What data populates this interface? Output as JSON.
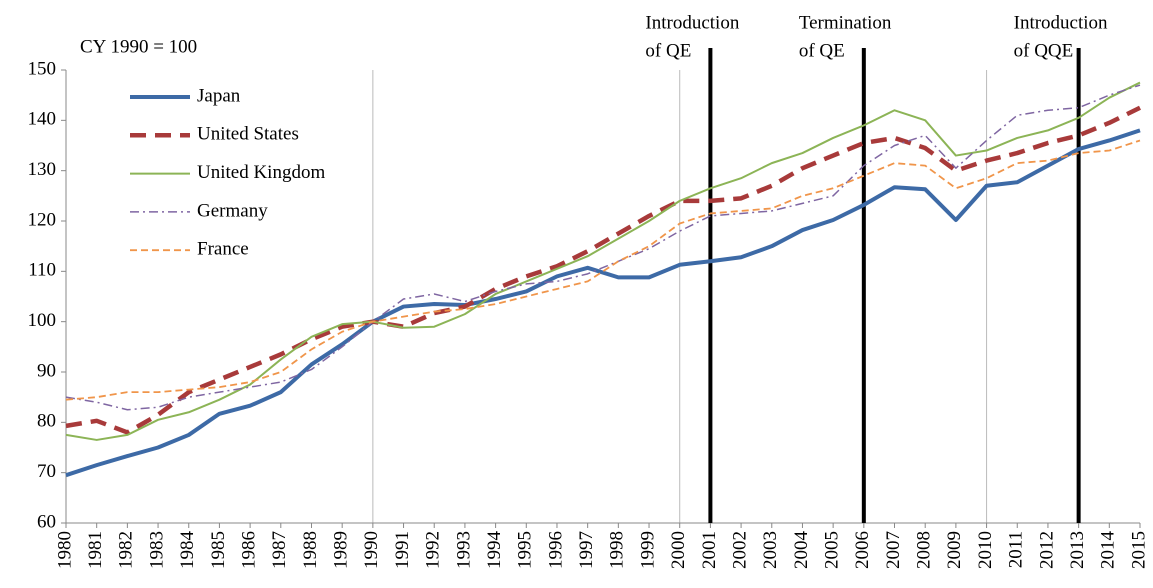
{
  "chart_data": {
    "type": "line",
    "subtitle": "CY 1990 = 100",
    "categories": [
      "1980",
      "1981",
      "1982",
      "1983",
      "1984",
      "1985",
      "1986",
      "1987",
      "1988",
      "1989",
      "1990",
      "1991",
      "1992",
      "1993",
      "1994",
      "1995",
      "1996",
      "1997",
      "1998",
      "1999",
      "2000",
      "2001",
      "2002",
      "2003",
      "2004",
      "2005",
      "2006",
      "2007",
      "2008",
      "2009",
      "2010",
      "2011",
      "2012",
      "2013",
      "2014",
      "2015"
    ],
    "series": [
      {
        "name": "Japan",
        "color": "#3d6aa6",
        "values": [
          69.5,
          71.5,
          73.3,
          75,
          77.5,
          81.7,
          83.3,
          86,
          91.5,
          95.5,
          100,
          103,
          103.5,
          103.3,
          104.5,
          106,
          109,
          110.7,
          108.8,
          108.8,
          111.3,
          112,
          112.8,
          115,
          118.2,
          120.2,
          123.2,
          126.7,
          126.3,
          120.2,
          127,
          127.7,
          131,
          134.3,
          136,
          138
        ]
      },
      {
        "name": "United States",
        "color": "#a83a3a",
        "values": [
          79.3,
          80.3,
          78,
          81.5,
          86,
          88.5,
          91,
          93.5,
          96.5,
          99,
          100,
          99,
          101.7,
          103,
          106.5,
          109,
          111,
          114,
          117.5,
          121,
          124,
          124,
          124.5,
          127,
          130.5,
          133,
          135.5,
          136.5,
          134.5,
          130,
          132,
          133.5,
          135.5,
          137,
          139.5,
          142.5
        ]
      },
      {
        "name": "United Kingdom",
        "color": "#8cb456",
        "values": [
          77.5,
          76.5,
          77.5,
          80.5,
          82,
          84.5,
          87.5,
          92.5,
          97,
          99.5,
          100,
          98.8,
          99,
          101.5,
          105.5,
          108,
          110.5,
          113,
          116.5,
          120,
          124,
          126.5,
          128.5,
          131.5,
          133.5,
          136.5,
          139,
          142,
          140,
          133,
          134,
          136.5,
          138,
          140.5,
          144.5,
          147.5
        ]
      },
      {
        "name": "Germany",
        "color": "#7f66a2",
        "values": [
          85,
          84,
          82.5,
          83,
          85,
          86,
          87,
          88,
          90.5,
          95,
          100,
          104.5,
          105.5,
          104,
          106,
          107.5,
          108,
          109.5,
          112,
          114.5,
          118,
          121,
          121.5,
          122,
          123.5,
          125,
          131,
          135,
          137,
          130.5,
          136,
          141,
          142,
          142.5,
          145,
          147
        ]
      },
      {
        "name": "France",
        "color": "#f0954a",
        "values": [
          84.5,
          85,
          86,
          86,
          86.5,
          87,
          88,
          90,
          94.5,
          98,
          100,
          101,
          102,
          102.5,
          103.5,
          105,
          106.5,
          108,
          112,
          115,
          119.5,
          121.5,
          122,
          122.5,
          125,
          126.5,
          129,
          131.5,
          131,
          126.5,
          128.5,
          131.5,
          132,
          133.5,
          134,
          136
        ]
      }
    ],
    "ylim": [
      60,
      150
    ],
    "yticks": [
      60,
      70,
      80,
      90,
      100,
      110,
      120,
      130,
      140,
      150
    ],
    "xgrid": [
      "1990",
      "2000",
      "2010"
    ],
    "annotations": [
      {
        "at": "2001",
        "text": [
          "Introduction",
          "of QE"
        ]
      },
      {
        "at": "2006",
        "text": [
          "Termination",
          "of QE"
        ]
      },
      {
        "at": "2013",
        "text": [
          "Introduction",
          "of QQE"
        ]
      }
    ],
    "legend": "upper left"
  }
}
